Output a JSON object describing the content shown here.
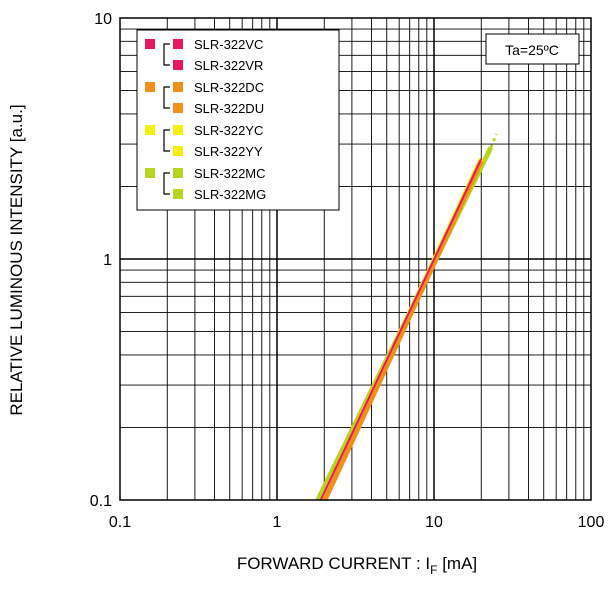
{
  "chart_data": {
    "type": "line",
    "xlabel": "FORWARD CURRENT : I",
    "xlabel_sub": "F",
    "xlabel_suffix": " [mA]",
    "ylabel": "RELATIVE LUMINOUS INTENSITY [a.u.]",
    "x_scale": "log",
    "y_scale": "log",
    "xlim": [
      0.1,
      100
    ],
    "ylim": [
      0.1,
      10
    ],
    "grid": true,
    "x_ticks": [
      "0.1",
      "1",
      "10",
      "100"
    ],
    "y_ticks": [
      "0.1",
      "1",
      "10"
    ],
    "annotation": "Ta=25ºC",
    "legend_position": "top-left",
    "legend_groups": [
      {
        "color": "#e8185c",
        "names": [
          "SLR-322VC",
          "SLR-322VR"
        ]
      },
      {
        "color": "#f0901c",
        "names": [
          "SLR-322DC",
          "SLR-322DU"
        ]
      },
      {
        "color": "#f4ee10",
        "names": [
          "SLR-322YC",
          "SLR-322YY"
        ]
      },
      {
        "color": "#b8d420",
        "names": [
          "SLR-322MC",
          "SLR-322MG"
        ]
      }
    ],
    "series": [
      {
        "name": "SLR-322MC / SLR-322MG",
        "color": "#b8d420",
        "x": [
          1.82,
          23
        ],
        "y": [
          0.1,
          2.9
        ],
        "dashed_to": [
          25,
          3.3
        ]
      },
      {
        "name": "SLR-322YC / SLR-322YY",
        "color": "#f4ee10",
        "x": [
          1.95,
          20
        ],
        "y": [
          0.1,
          2.6
        ]
      },
      {
        "name": "SLR-322DC / SLR-322DU",
        "color": "#f0901c",
        "x": [
          2.02,
          20
        ],
        "y": [
          0.1,
          2.55
        ]
      },
      {
        "name": "SLR-322VC / SLR-322VR",
        "color": "#e8185c",
        "x": [
          1.9,
          20
        ],
        "y": [
          0.1,
          2.6
        ]
      }
    ]
  }
}
